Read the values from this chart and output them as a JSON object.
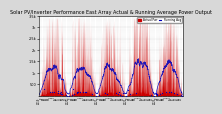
{
  "title": "Solar PV/Inverter Performance East Array Actual & Running Average Power Output",
  "title_fontsize": 3.5,
  "bg_color": "#d8d8d8",
  "plot_bg_color": "#ffffff",
  "ylim": [
    0,
    3500
  ],
  "yticks": [
    500,
    1000,
    1500,
    2000,
    2500,
    3000,
    3500
  ],
  "ytick_labels": [
    "500",
    "1k",
    "1.5k",
    "2k",
    "2.5k",
    "3k",
    "3.5k"
  ],
  "num_years": 5,
  "points_per_year": 365,
  "red_color": "#cc0000",
  "blue_color": "#0000bb",
  "grid_color": "#bbbbbb",
  "legend_actual": "Actual Pwr",
  "legend_avg": "Running Avg"
}
